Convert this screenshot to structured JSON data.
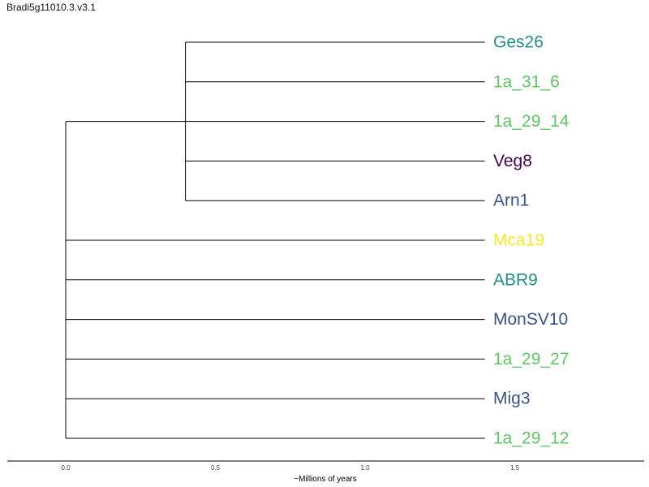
{
  "title": "Bradi5g11010.3.v3.1",
  "axis": {
    "label": "~Millions of years",
    "ticks": [
      {
        "value": 0.0,
        "label": "0.0"
      },
      {
        "value": 0.5,
        "label": "0.5"
      },
      {
        "value": 1.0,
        "label": "1.0"
      },
      {
        "value": 1.5,
        "label": "1.5"
      }
    ]
  },
  "tree": {
    "leaves": [
      {
        "name": "Ges26",
        "color": "#21908d"
      },
      {
        "name": "1a_31_6",
        "color": "#5ec962"
      },
      {
        "name": "1a_29_14",
        "color": "#5ec962"
      },
      {
        "name": "Veg8",
        "color": "#440154"
      },
      {
        "name": "Arn1",
        "color": "#3b528b"
      },
      {
        "name": "Mca19",
        "color": "#fde725"
      },
      {
        "name": "ABR9",
        "color": "#21908d"
      },
      {
        "name": "MonSV10",
        "color": "#3b528b"
      },
      {
        "name": "1a_29_27",
        "color": "#5ec962"
      },
      {
        "name": "Mig3",
        "color": "#3b528b"
      },
      {
        "name": "1a_29_12",
        "color": "#5ec962"
      }
    ],
    "leaf_depth": 1.4,
    "clade": {
      "depth": 0.4,
      "members": [
        "Ges26",
        "1a_31_6",
        "1a_29_14",
        "Veg8",
        "Arn1"
      ],
      "attach_to": "1a_29_14"
    },
    "root": {
      "depth": 0.0,
      "members": [
        "clade",
        "Mca19",
        "ABR9",
        "MonSV10",
        "1a_29_27",
        "Mig3",
        "1a_29_12"
      ]
    }
  }
}
